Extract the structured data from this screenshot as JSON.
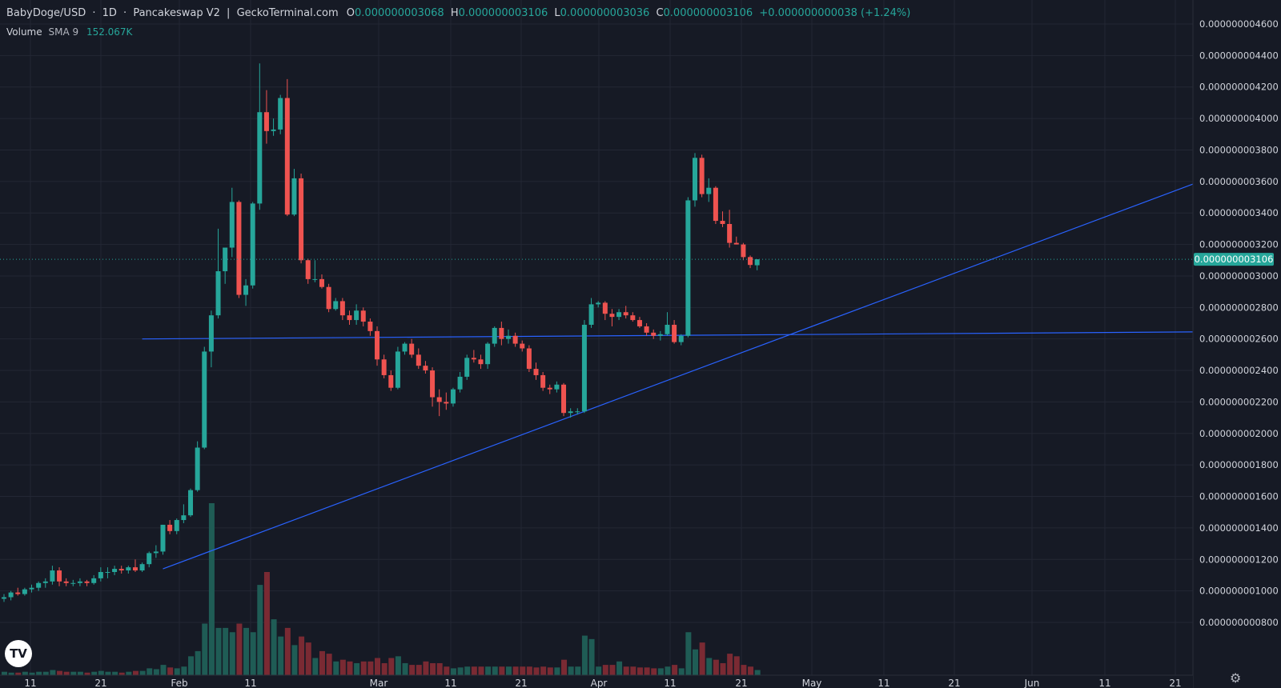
{
  "header": {
    "symbol": "BabyDoge/USD",
    "interval": "1D",
    "exchange": "Pancakeswap V2",
    "source": "GeckoTerminal.com",
    "o_label": "O",
    "o_value": "0.000000003068",
    "h_label": "H",
    "h_value": "0.000000003106",
    "l_label": "L",
    "l_value": "0.000000003036",
    "c_label": "C",
    "c_value": "0.000000003106",
    "change": "+0.000000000038 (+1.24%)"
  },
  "volume_legend": {
    "label": "Volume",
    "sma": "SMA 9",
    "value": "152.067K"
  },
  "logo_text": "TV",
  "settings_icon": "gear-icon",
  "colors": {
    "background": "#161a25",
    "grid": "#232734",
    "up": "#26a69a",
    "down": "#ef5350",
    "up_volume": "#1f5c55",
    "down_volume": "#7a2a33",
    "trendline": "#2962ff",
    "price_tag": "#26a69a",
    "text": "#d1d4dc"
  },
  "chart_data": {
    "type": "candlestick",
    "y_axis_ticks": [
      "0.000000004600",
      "0.000000004400",
      "0.000000004200",
      "0.000000004000",
      "0.000000003800",
      "0.000000003600",
      "0.000000003400",
      "0.000000003200",
      "0.000000003000",
      "0.000000002800",
      "0.000000002600",
      "0.000000002400",
      "0.000000002200",
      "0.000000002000",
      "0.000000001800",
      "0.000000001600",
      "0.000000001400",
      "0.000000001200",
      "0.000000001000",
      "0.000000000800"
    ],
    "x_axis_ticks": [
      "11",
      "21",
      "Feb",
      "11",
      "Mar",
      "11",
      "21",
      "Apr",
      "11",
      "21",
      "May",
      "11",
      "21",
      "Jun",
      "11",
      "21"
    ],
    "ylim": [
      7.2e-10,
      4.69e-09
    ],
    "last_price_label": "0.000000003106",
    "last_price": 3.106e-09,
    "candles": [
      {
        "o": 9.5e-10,
        "h": 9.8e-10,
        "l": 9.3e-10,
        "c": 9.6e-10,
        "v": 4
      },
      {
        "o": 9.6e-10,
        "h": 1e-09,
        "l": 9.4e-10,
        "c": 9.9e-10,
        "v": 3
      },
      {
        "o": 9.9e-10,
        "h": 1.02e-09,
        "l": 9.7e-10,
        "c": 9.8e-10,
        "v": 3
      },
      {
        "o": 9.8e-10,
        "h": 1.02e-09,
        "l": 9.7e-10,
        "c": 1.01e-09,
        "v": 4
      },
      {
        "o": 1.01e-09,
        "h": 1.04e-09,
        "l": 9.9e-10,
        "c": 1.02e-09,
        "v": 3
      },
      {
        "o": 1.02e-09,
        "h": 1.06e-09,
        "l": 1e-09,
        "c": 1.05e-09,
        "v": 4
      },
      {
        "o": 1.05e-09,
        "h": 1.08e-09,
        "l": 1.02e-09,
        "c": 1.06e-09,
        "v": 4
      },
      {
        "o": 1.06e-09,
        "h": 1.16e-09,
        "l": 1.04e-09,
        "c": 1.13e-09,
        "v": 6
      },
      {
        "o": 1.13e-09,
        "h": 1.15e-09,
        "l": 1.03e-09,
        "c": 1.06e-09,
        "v": 5
      },
      {
        "o": 1.06e-09,
        "h": 1.08e-09,
        "l": 1.03e-09,
        "c": 1.05e-09,
        "v": 4
      },
      {
        "o": 1.05e-09,
        "h": 1.07e-09,
        "l": 1.03e-09,
        "c": 1.05e-09,
        "v": 4
      },
      {
        "o": 1.05e-09,
        "h": 1.08e-09,
        "l": 1.03e-09,
        "c": 1.06e-09,
        "v": 4
      },
      {
        "o": 1.06e-09,
        "h": 1.07e-09,
        "l": 1.03e-09,
        "c": 1.05e-09,
        "v": 3
      },
      {
        "o": 1.05e-09,
        "h": 1.1e-09,
        "l": 1.04e-09,
        "c": 1.08e-09,
        "v": 4
      },
      {
        "o": 1.08e-09,
        "h": 1.15e-09,
        "l": 1.06e-09,
        "c": 1.12e-09,
        "v": 5
      },
      {
        "o": 1.12e-09,
        "h": 1.15e-09,
        "l": 1.08e-09,
        "c": 1.12e-09,
        "v": 4
      },
      {
        "o": 1.12e-09,
        "h": 1.16e-09,
        "l": 1.1e-09,
        "c": 1.14e-09,
        "v": 4
      },
      {
        "o": 1.14e-09,
        "h": 1.16e-09,
        "l": 1.11e-09,
        "c": 1.13e-09,
        "v": 3
      },
      {
        "o": 1.13e-09,
        "h": 1.16e-09,
        "l": 1.11e-09,
        "c": 1.15e-09,
        "v": 4
      },
      {
        "o": 1.15e-09,
        "h": 1.2e-09,
        "l": 1.12e-09,
        "c": 1.13e-09,
        "v": 5
      },
      {
        "o": 1.13e-09,
        "h": 1.18e-09,
        "l": 1.12e-09,
        "c": 1.17e-09,
        "v": 5
      },
      {
        "o": 1.17e-09,
        "h": 1.25e-09,
        "l": 1.15e-09,
        "c": 1.24e-09,
        "v": 8
      },
      {
        "o": 1.24e-09,
        "h": 1.29e-09,
        "l": 1.21e-09,
        "c": 1.25e-09,
        "v": 7
      },
      {
        "o": 1.25e-09,
        "h": 1.42e-09,
        "l": 1.23e-09,
        "c": 1.42e-09,
        "v": 12
      },
      {
        "o": 1.42e-09,
        "h": 1.45e-09,
        "l": 1.36e-09,
        "c": 1.38e-09,
        "v": 9
      },
      {
        "o": 1.38e-09,
        "h": 1.46e-09,
        "l": 1.36e-09,
        "c": 1.45e-09,
        "v": 8
      },
      {
        "o": 1.45e-09,
        "h": 1.55e-09,
        "l": 1.43e-09,
        "c": 1.48e-09,
        "v": 10
      },
      {
        "o": 1.48e-09,
        "h": 1.65e-09,
        "l": 1.47e-09,
        "c": 1.64e-09,
        "v": 22
      },
      {
        "o": 1.64e-09,
        "h": 1.95e-09,
        "l": 1.63e-09,
        "c": 1.91e-09,
        "v": 28
      },
      {
        "o": 1.91e-09,
        "h": 2.55e-09,
        "l": 1.9e-09,
        "c": 2.52e-09,
        "v": 60
      },
      {
        "o": 2.52e-09,
        "h": 2.78e-09,
        "l": 2.42e-09,
        "c": 2.75e-09,
        "v": 200
      },
      {
        "o": 2.75e-09,
        "h": 3.3e-09,
        "l": 2.73e-09,
        "c": 3.03e-09,
        "v": 55
      },
      {
        "o": 3.03e-09,
        "h": 3.15e-09,
        "l": 2.95e-09,
        "c": 3.18e-09,
        "v": 55
      },
      {
        "o": 3.18e-09,
        "h": 3.56e-09,
        "l": 3.12e-09,
        "c": 3.47e-09,
        "v": 50
      },
      {
        "o": 3.47e-09,
        "h": 3.48e-09,
        "l": 2.86e-09,
        "c": 2.88e-09,
        "v": 60
      },
      {
        "o": 2.88e-09,
        "h": 2.98e-09,
        "l": 2.81e-09,
        "c": 2.94e-09,
        "v": 55
      },
      {
        "o": 2.94e-09,
        "h": 3.47e-09,
        "l": 2.92e-09,
        "c": 3.46e-09,
        "v": 50
      },
      {
        "o": 3.46e-09,
        "h": 4.35e-09,
        "l": 3.42e-09,
        "c": 4.04e-09,
        "v": 105
      },
      {
        "o": 4.04e-09,
        "h": 4.18e-09,
        "l": 3.84e-09,
        "c": 3.92e-09,
        "v": 120
      },
      {
        "o": 3.92e-09,
        "h": 4e-09,
        "l": 3.89e-09,
        "c": 3.93e-09,
        "v": 65
      },
      {
        "o": 3.93e-09,
        "h": 4.15e-09,
        "l": 3.9e-09,
        "c": 4.13e-09,
        "v": 45
      },
      {
        "o": 4.13e-09,
        "h": 4.25e-09,
        "l": 3.38e-09,
        "c": 3.39e-09,
        "v": 55
      },
      {
        "o": 3.39e-09,
        "h": 3.68e-09,
        "l": 3.38e-09,
        "c": 3.62e-09,
        "v": 35
      },
      {
        "o": 3.62e-09,
        "h": 3.65e-09,
        "l": 3.08e-09,
        "c": 3.1e-09,
        "v": 45
      },
      {
        "o": 3.1e-09,
        "h": 3.11e-09,
        "l": 2.95e-09,
        "c": 2.98e-09,
        "v": 38
      },
      {
        "o": 2.98e-09,
        "h": 3.1e-09,
        "l": 2.96e-09,
        "c": 2.98e-09,
        "v": 20
      },
      {
        "o": 2.98e-09,
        "h": 3.01e-09,
        "l": 2.92e-09,
        "c": 2.93e-09,
        "v": 28
      },
      {
        "o": 2.93e-09,
        "h": 2.95e-09,
        "l": 2.77e-09,
        "c": 2.79e-09,
        "v": 25
      },
      {
        "o": 2.79e-09,
        "h": 2.86e-09,
        "l": 2.78e-09,
        "c": 2.84e-09,
        "v": 16
      },
      {
        "o": 2.84e-09,
        "h": 2.86e-09,
        "l": 2.72e-09,
        "c": 2.75e-09,
        "v": 18
      },
      {
        "o": 2.75e-09,
        "h": 2.78e-09,
        "l": 2.69e-09,
        "c": 2.72e-09,
        "v": 16
      },
      {
        "o": 2.72e-09,
        "h": 2.82e-09,
        "l": 2.69e-09,
        "c": 2.78e-09,
        "v": 14
      },
      {
        "o": 2.78e-09,
        "h": 2.8e-09,
        "l": 2.68e-09,
        "c": 2.71e-09,
        "v": 16
      },
      {
        "o": 2.71e-09,
        "h": 2.73e-09,
        "l": 2.62e-09,
        "c": 2.65e-09,
        "v": 16
      },
      {
        "o": 2.65e-09,
        "h": 2.68e-09,
        "l": 2.43e-09,
        "c": 2.47e-09,
        "v": 20
      },
      {
        "o": 2.47e-09,
        "h": 2.5e-09,
        "l": 2.35e-09,
        "c": 2.37e-09,
        "v": 14
      },
      {
        "o": 2.37e-09,
        "h": 2.4e-09,
        "l": 2.27e-09,
        "c": 2.29e-09,
        "v": 20
      },
      {
        "o": 2.29e-09,
        "h": 2.55e-09,
        "l": 2.28e-09,
        "c": 2.52e-09,
        "v": 22
      },
      {
        "o": 2.52e-09,
        "h": 2.58e-09,
        "l": 2.5e-09,
        "c": 2.57e-09,
        "v": 14
      },
      {
        "o": 2.57e-09,
        "h": 2.6e-09,
        "l": 2.48e-09,
        "c": 2.5e-09,
        "v": 12
      },
      {
        "o": 2.5e-09,
        "h": 2.54e-09,
        "l": 2.41e-09,
        "c": 2.43e-09,
        "v": 12
      },
      {
        "o": 2.43e-09,
        "h": 2.46e-09,
        "l": 2.38e-09,
        "c": 2.4e-09,
        "v": 16
      },
      {
        "o": 2.4e-09,
        "h": 2.42e-09,
        "l": 2.17e-09,
        "c": 2.23e-09,
        "v": 14
      },
      {
        "o": 2.23e-09,
        "h": 2.28e-09,
        "l": 2.11e-09,
        "c": 2.2e-09,
        "v": 14
      },
      {
        "o": 2.2e-09,
        "h": 2.26e-09,
        "l": 2.15e-09,
        "c": 2.19e-09,
        "v": 10
      },
      {
        "o": 2.19e-09,
        "h": 2.29e-09,
        "l": 2.17e-09,
        "c": 2.28e-09,
        "v": 8
      },
      {
        "o": 2.28e-09,
        "h": 2.39e-09,
        "l": 2.26e-09,
        "c": 2.36e-09,
        "v": 9
      },
      {
        "o": 2.36e-09,
        "h": 2.5e-09,
        "l": 2.34e-09,
        "c": 2.48e-09,
        "v": 10
      },
      {
        "o": 2.48e-09,
        "h": 2.53e-09,
        "l": 2.45e-09,
        "c": 2.47e-09,
        "v": 10
      },
      {
        "o": 2.47e-09,
        "h": 2.5e-09,
        "l": 2.41e-09,
        "c": 2.44e-09,
        "v": 10
      },
      {
        "o": 2.44e-09,
        "h": 2.58e-09,
        "l": 2.41e-09,
        "c": 2.57e-09,
        "v": 10
      },
      {
        "o": 2.57e-09,
        "h": 2.68e-09,
        "l": 2.55e-09,
        "c": 2.67e-09,
        "v": 10
      },
      {
        "o": 2.67e-09,
        "h": 2.71e-09,
        "l": 2.56e-09,
        "c": 2.6e-09,
        "v": 10
      },
      {
        "o": 2.6e-09,
        "h": 2.66e-09,
        "l": 2.57e-09,
        "c": 2.62e-09,
        "v": 10
      },
      {
        "o": 2.62e-09,
        "h": 2.64e-09,
        "l": 2.55e-09,
        "c": 2.57e-09,
        "v": 10
      },
      {
        "o": 2.57e-09,
        "h": 2.59e-09,
        "l": 2.52e-09,
        "c": 2.54e-09,
        "v": 10
      },
      {
        "o": 2.54e-09,
        "h": 2.56e-09,
        "l": 2.39e-09,
        "c": 2.41e-09,
        "v": 10
      },
      {
        "o": 2.41e-09,
        "h": 2.45e-09,
        "l": 2.34e-09,
        "c": 2.37e-09,
        "v": 9
      },
      {
        "o": 2.37e-09,
        "h": 2.39e-09,
        "l": 2.27e-09,
        "c": 2.29e-09,
        "v": 10
      },
      {
        "o": 2.29e-09,
        "h": 2.31e-09,
        "l": 2.25e-09,
        "c": 2.28e-09,
        "v": 9
      },
      {
        "o": 2.28e-09,
        "h": 2.33e-09,
        "l": 2.26e-09,
        "c": 2.31e-09,
        "v": 9
      },
      {
        "o": 2.31e-09,
        "h": 2.32e-09,
        "l": 2.11e-09,
        "c": 2.13e-09,
        "v": 18
      },
      {
        "o": 2.13e-09,
        "h": 2.16e-09,
        "l": 2.1e-09,
        "c": 2.14e-09,
        "v": 10
      },
      {
        "o": 2.14e-09,
        "h": 2.16e-09,
        "l": 2.12e-09,
        "c": 2.14e-09,
        "v": 10
      },
      {
        "o": 2.14e-09,
        "h": 2.72e-09,
        "l": 2.13e-09,
        "c": 2.69e-09,
        "v": 46
      },
      {
        "o": 2.69e-09,
        "h": 2.86e-09,
        "l": 2.67e-09,
        "c": 2.82e-09,
        "v": 42
      },
      {
        "o": 2.82e-09,
        "h": 2.84e-09,
        "l": 2.8e-09,
        "c": 2.83e-09,
        "v": 10
      },
      {
        "o": 2.83e-09,
        "h": 2.84e-09,
        "l": 2.72e-09,
        "c": 2.76e-09,
        "v": 12
      },
      {
        "o": 2.76e-09,
        "h": 2.79e-09,
        "l": 2.68e-09,
        "c": 2.74e-09,
        "v": 12
      },
      {
        "o": 2.74e-09,
        "h": 2.79e-09,
        "l": 2.72e-09,
        "c": 2.77e-09,
        "v": 16
      },
      {
        "o": 2.77e-09,
        "h": 2.81e-09,
        "l": 2.73e-09,
        "c": 2.75e-09,
        "v": 10
      },
      {
        "o": 2.75e-09,
        "h": 2.77e-09,
        "l": 2.71e-09,
        "c": 2.72e-09,
        "v": 10
      },
      {
        "o": 2.72e-09,
        "h": 2.74e-09,
        "l": 2.67e-09,
        "c": 2.68e-09,
        "v": 9
      },
      {
        "o": 2.68e-09,
        "h": 2.7e-09,
        "l": 2.62e-09,
        "c": 2.64e-09,
        "v": 9
      },
      {
        "o": 2.64e-09,
        "h": 2.66e-09,
        "l": 2.6e-09,
        "c": 2.62e-09,
        "v": 8
      },
      {
        "o": 2.62e-09,
        "h": 2.65e-09,
        "l": 2.59e-09,
        "c": 2.63e-09,
        "v": 8
      },
      {
        "o": 2.63e-09,
        "h": 2.77e-09,
        "l": 2.62e-09,
        "c": 2.69e-09,
        "v": 10
      },
      {
        "o": 2.69e-09,
        "h": 2.72e-09,
        "l": 2.57e-09,
        "c": 2.58e-09,
        "v": 12
      },
      {
        "o": 2.58e-09,
        "h": 2.63e-09,
        "l": 2.56e-09,
        "c": 2.62e-09,
        "v": 8
      },
      {
        "o": 2.62e-09,
        "h": 3.5e-09,
        "l": 2.61e-09,
        "c": 3.48e-09,
        "v": 50
      },
      {
        "o": 3.48e-09,
        "h": 3.78e-09,
        "l": 3.44e-09,
        "c": 3.75e-09,
        "v": 30
      },
      {
        "o": 3.75e-09,
        "h": 3.77e-09,
        "l": 3.5e-09,
        "c": 3.52e-09,
        "v": 38
      },
      {
        "o": 3.52e-09,
        "h": 3.62e-09,
        "l": 3.47e-09,
        "c": 3.56e-09,
        "v": 20
      },
      {
        "o": 3.56e-09,
        "h": 3.57e-09,
        "l": 3.33e-09,
        "c": 3.35e-09,
        "v": 18
      },
      {
        "o": 3.35e-09,
        "h": 3.41e-09,
        "l": 3.31e-09,
        "c": 3.33e-09,
        "v": 14
      },
      {
        "o": 3.33e-09,
        "h": 3.42e-09,
        "l": 3.18e-09,
        "c": 3.21e-09,
        "v": 25
      },
      {
        "o": 3.21e-09,
        "h": 3.25e-09,
        "l": 3.2e-09,
        "c": 3.2e-09,
        "v": 22
      },
      {
        "o": 3.2e-09,
        "h": 3.21e-09,
        "l": 3.1e-09,
        "c": 3.12e-09,
        "v": 12
      },
      {
        "o": 3.12e-09,
        "h": 3.13e-09,
        "l": 3.05e-09,
        "c": 3.07e-09,
        "v": 10
      },
      {
        "o": 3.068e-09,
        "h": 3.106e-09,
        "l": 3.036e-09,
        "c": 3.106e-09,
        "v": 6
      }
    ],
    "trendlines": [
      {
        "name": "horizontal-support",
        "from": {
          "bar": 20,
          "price": 2.6e-09
        },
        "to": {
          "bar": 190,
          "price": 2.65e-09
        }
      },
      {
        "name": "ascending-support",
        "from": {
          "bar": 23,
          "price": 1.14e-09
        },
        "to": {
          "bar": 192,
          "price": 3.91e-09
        }
      }
    ]
  }
}
